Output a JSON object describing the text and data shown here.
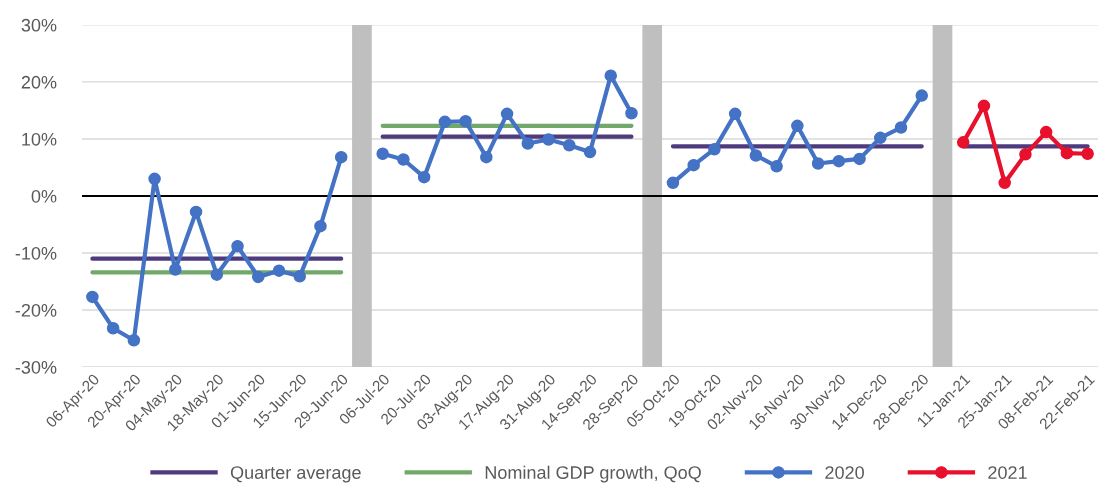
{
  "chart_data": {
    "type": "line",
    "categories": [
      "06-Apr-20",
      null,
      "20-Apr-20",
      null,
      "04-May-20",
      null,
      "18-May-20",
      null,
      "01-Jun-20",
      null,
      "15-Jun-20",
      null,
      "29-Jun-20",
      null,
      "06-Jul-20",
      null,
      "20-Jul-20",
      null,
      "03-Aug-20",
      null,
      "17-Aug-20",
      null,
      "31-Aug-20",
      null,
      "14-Sep-20",
      null,
      "28-Sep-20",
      null,
      "05-Oct-20",
      null,
      "19-Oct-20",
      null,
      "02-Nov-20",
      null,
      "16-Nov-20",
      null,
      "30-Nov-20",
      null,
      "14-Dec-20",
      null,
      "28-Dec-20",
      null,
      "11-Jan-21",
      null,
      "25-Jan-21",
      null,
      "08-Feb-21",
      null,
      "22-Feb-21"
    ],
    "series": [
      {
        "type": "bar",
        "color": "#bfbfbf",
        "base": [
          null,
          null,
          null,
          null,
          null,
          null,
          null,
          null,
          null,
          null,
          null,
          null,
          null,
          -30,
          null,
          null,
          null,
          null,
          null,
          null,
          null,
          null,
          null,
          null,
          null,
          null,
          null,
          -30,
          null,
          null,
          null,
          null,
          null,
          null,
          null,
          null,
          null,
          null,
          null,
          null,
          null,
          -30,
          null,
          null,
          null,
          null,
          null,
          null,
          null
        ],
        "values": [
          null,
          null,
          null,
          null,
          null,
          null,
          null,
          null,
          null,
          null,
          null,
          null,
          null,
          60,
          null,
          null,
          null,
          null,
          null,
          null,
          null,
          null,
          null,
          null,
          null,
          null,
          null,
          60,
          null,
          null,
          null,
          null,
          null,
          null,
          null,
          null,
          null,
          null,
          null,
          null,
          null,
          60,
          null,
          null,
          null,
          null,
          null,
          null,
          null
        ]
      },
      {
        "name": "Quarter average",
        "color": "#4e3b7e",
        "marker": "none",
        "values": [
          -11.0,
          -11.0,
          -11.0,
          -11.0,
          -11.0,
          -11.0,
          -11.0,
          -11.0,
          -11.0,
          -11.0,
          -11.0,
          -11.0,
          -11.0,
          null,
          10.4,
          10.4,
          10.4,
          10.4,
          10.4,
          10.4,
          10.4,
          10.4,
          10.4,
          10.4,
          10.4,
          10.4,
          10.4,
          null,
          8.7,
          8.7,
          8.7,
          8.7,
          8.7,
          8.7,
          8.7,
          8.7,
          8.7,
          8.7,
          8.7,
          8.7,
          8.7,
          null,
          8.7,
          8.7,
          8.7,
          8.7,
          8.7,
          8.7,
          8.7
        ]
      },
      {
        "name": "Nominal GDP growth, QoQ",
        "color": "#72a86a",
        "marker": "none",
        "values": [
          -13.4,
          -13.4,
          -13.4,
          -13.4,
          -13.4,
          -13.4,
          -13.4,
          -13.4,
          -13.4,
          -13.4,
          -13.4,
          -13.4,
          -13.4,
          null,
          12.3,
          12.3,
          12.3,
          12.3,
          12.3,
          12.3,
          12.3,
          12.3,
          12.3,
          12.3,
          12.3,
          12.3,
          12.3,
          null,
          null,
          null,
          null,
          null,
          null,
          null,
          null,
          null,
          null,
          null,
          null,
          null,
          null,
          null,
          null,
          null,
          null,
          null,
          null,
          null,
          null
        ]
      },
      {
        "name": "2020",
        "color": "#4472c4",
        "marker": "circle",
        "values": [
          -17.7,
          -23.2,
          -25.3,
          3.0,
          -12.9,
          -2.8,
          -13.8,
          -8.8,
          -14.2,
          -13.1,
          -14.1,
          -5.3,
          6.8,
          null,
          7.4,
          6.4,
          3.3,
          13.0,
          13.1,
          6.8,
          14.4,
          9.2,
          9.9,
          8.9,
          7.7,
          21.1,
          14.5,
          null,
          2.3,
          5.4,
          8.2,
          14.4,
          7.1,
          5.2,
          12.3,
          5.7,
          6.1,
          6.5,
          10.2,
          12.0,
          17.6,
          null,
          null,
          null,
          null,
          null,
          null,
          null,
          null
        ]
      },
      {
        "name": "2021",
        "color": "#e8112d",
        "marker": "circle",
        "values": [
          null,
          null,
          null,
          null,
          null,
          null,
          null,
          null,
          null,
          null,
          null,
          null,
          null,
          null,
          null,
          null,
          null,
          null,
          null,
          null,
          null,
          null,
          null,
          null,
          null,
          null,
          null,
          null,
          null,
          null,
          null,
          null,
          null,
          null,
          null,
          null,
          null,
          null,
          null,
          null,
          null,
          null,
          9.4,
          15.8,
          2.3,
          7.3,
          11.2,
          7.5,
          7.4
        ]
      }
    ],
    "ylim": [
      -30,
      30
    ],
    "yticks": [
      {
        "value": -30,
        "label": "-30%"
      },
      {
        "value": -20,
        "label": "-20%"
      },
      {
        "value": -10,
        "label": "-10%"
      },
      {
        "value": 0,
        "label": "0%"
      },
      {
        "value": 10,
        "label": "10%"
      },
      {
        "value": 20,
        "label": "20%"
      },
      {
        "value": 30,
        "label": "30%"
      }
    ],
    "ref_lines": [
      {
        "axis": "y",
        "value": 0,
        "color": "#000000"
      }
    ],
    "grid": "y",
    "legend": "bottom"
  }
}
